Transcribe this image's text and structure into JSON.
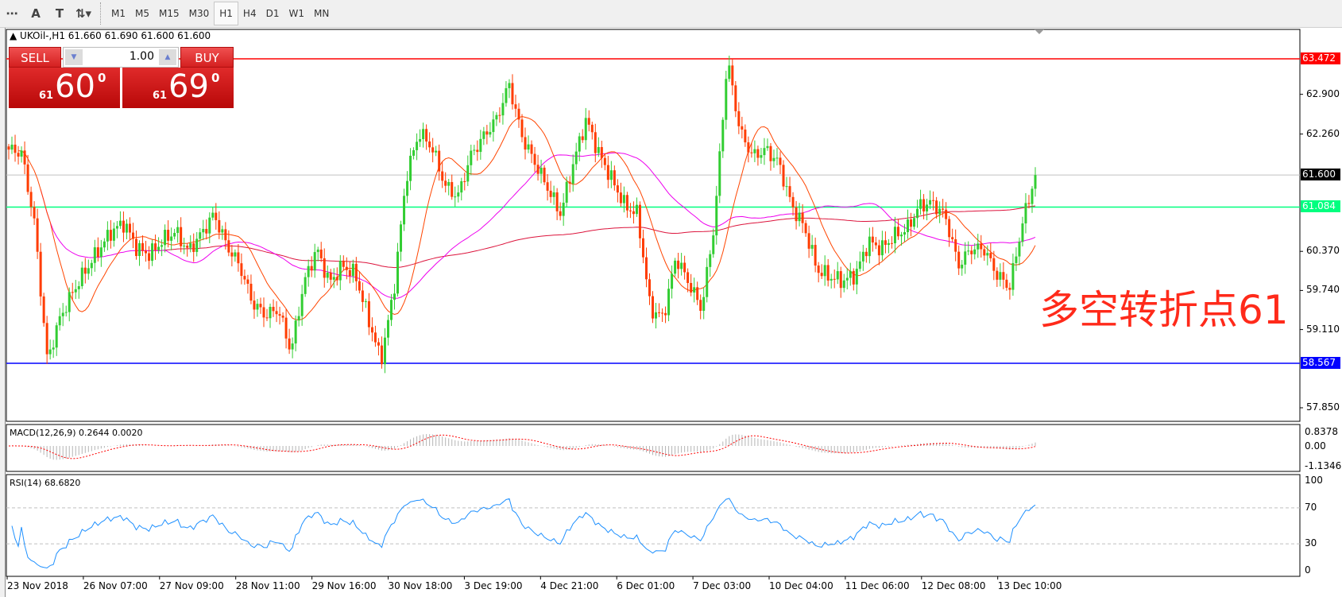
{
  "toolbar": {
    "icons": [
      "fibonacci-fan-icon",
      "text-icon",
      "text-label-icon",
      "arrows-icon"
    ],
    "text_icon_glyph": "A",
    "timeframes": [
      "M1",
      "M5",
      "M15",
      "M30",
      "H1",
      "H4",
      "D1",
      "W1",
      "MN"
    ],
    "active_timeframe": "H1"
  },
  "chart": {
    "header": "UKOil-,H1  61.660 61.690 61.600 61.600",
    "trade_panel": {
      "sell_label": "SELL",
      "buy_label": "BUY",
      "lot": "1.00",
      "sell_prefix": "61",
      "sell_big": "60",
      "sell_sup": "0",
      "buy_prefix": "61",
      "buy_big": "69",
      "buy_sup": "0"
    },
    "annotation": "多空转折点61",
    "price_axis": [
      "62.900",
      "62.260",
      "60.370",
      "59.740",
      "59.110",
      "57.850"
    ],
    "price_tags": [
      {
        "value": "63.472",
        "color": "#ff0000"
      },
      {
        "value": "61.600",
        "color": "#000000"
      },
      {
        "value": "61.084",
        "color": "#00ff7f"
      },
      {
        "value": "58.567",
        "color": "#0000ff"
      }
    ],
    "time_axis": [
      "23 Nov 2018",
      "26 Nov 07:00",
      "27 Nov 09:00",
      "28 Nov 11:00",
      "29 Nov 16:00",
      "30 Nov 18:00",
      "3 Dec 19:00",
      "4 Dec 21:00",
      "6 Dec 01:00",
      "7 Dec 03:00",
      "10 Dec 04:00",
      "11 Dec 06:00",
      "12 Dec 08:00",
      "13 Dec 10:00"
    ],
    "colors": {
      "up": "#32cd32",
      "down": "#ff3c00",
      "ma_fast": "#ff4500",
      "ma_mid": "#ee00ee",
      "ma_slow": "#dc143c",
      "rsi": "#1e90ff",
      "macd_hist": "#b4b4b4",
      "macd_signal": "#ff0000"
    }
  },
  "macd": {
    "label": "MACD(12,26,9) 0.2644 0.0020",
    "axis": [
      "0.8378",
      "0.00",
      "-1.1346"
    ]
  },
  "rsi": {
    "label": "RSI(14) 68.6820",
    "axis": [
      "100",
      "70",
      "30",
      "0"
    ]
  },
  "chart_data": {
    "type": "candlestick",
    "symbol": "UKOil-",
    "timeframe": "H1",
    "ylim": [
      57.6,
      63.75
    ],
    "hlines": [
      63.472,
      61.084,
      58.567,
      61.6
    ],
    "closes_sampled": [
      62.01,
      61.96,
      60.83,
      58.61,
      59.3,
      59.72,
      60.07,
      60.39,
      60.69,
      60.83,
      60.41,
      60.32,
      60.55,
      60.69,
      60.37,
      60.65,
      60.97,
      60.46,
      60.14,
      59.54,
      59.34,
      59.44,
      58.75,
      59.86,
      60.41,
      59.86,
      60.14,
      60.0,
      59.3,
      58.61,
      59.72,
      61.6,
      62.29,
      62.04,
      61.43,
      61.25,
      61.91,
      62.22,
      62.5,
      63.06,
      62.22,
      61.8,
      61.39,
      60.97,
      61.8,
      62.5,
      61.94,
      61.53,
      61.11,
      60.97,
      59.44,
      59.3,
      60.28,
      59.86,
      59.44,
      60.83,
      63.47,
      62.29,
      61.9,
      62.01,
      61.8,
      61.11,
      60.76,
      60.07,
      59.96,
      59.89,
      60.0,
      60.53,
      60.41,
      60.62,
      60.73,
      61.11,
      61.15,
      60.93,
      60.14,
      60.41,
      60.41,
      60.0,
      59.79,
      60.83,
      61.6
    ]
  }
}
